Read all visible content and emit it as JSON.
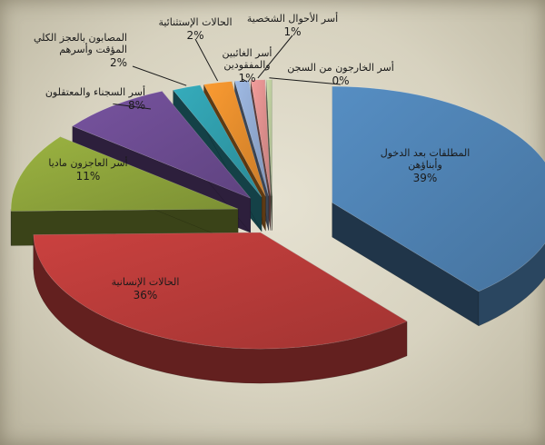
{
  "chart_data": {
    "type": "pie",
    "style": "3d-exploded",
    "slices": [
      {
        "lines": [
          "المطلقات بعد الدخول",
          "وأبناؤهن"
        ],
        "pct": "39%",
        "value": 39,
        "color": "#4d7fae"
      },
      {
        "lines": [
          "الحالات الإنسانية"
        ],
        "pct": "36%",
        "value": 36,
        "color": "#b43a38"
      },
      {
        "lines": [
          "أسر العاجزون ماديا"
        ],
        "pct": "11%",
        "value": 11,
        "color": "#8aa03a"
      },
      {
        "lines": [
          "أسر السجناء والمعتقلون"
        ],
        "pct": "8%",
        "value": 8,
        "color": "#6a4a8e"
      },
      {
        "lines": [
          "المصابون بالعجز الكلي",
          "المؤقت وأسرهم"
        ],
        "pct": "2%",
        "value": 2,
        "color": "#2f9aa8"
      },
      {
        "lines": [
          "الحالات الإستثنائية"
        ],
        "pct": "2%",
        "value": 2,
        "color": "#e08a2c"
      },
      {
        "lines": [
          "أسر الغائبين",
          "والمفقودين"
        ],
        "pct": "1%",
        "value": 1,
        "color": "#8ea6cc"
      },
      {
        "lines": [
          "أسر الأحوال الشخصية"
        ],
        "pct": "1%",
        "value": 1,
        "color": "#d98c8a"
      },
      {
        "lines": [
          "أسر الخارجون من السجن"
        ],
        "pct": "0%",
        "value": 0.4,
        "color": "#b7c79a"
      }
    ]
  }
}
